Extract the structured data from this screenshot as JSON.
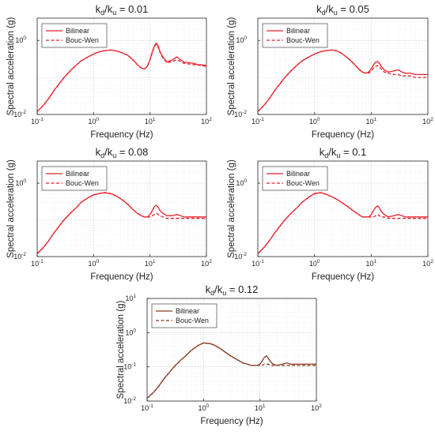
{
  "chart_data": [
    {
      "type": "line",
      "title_main": "k",
      "title_sub1": "d",
      "title_mid": "/k",
      "title_sub2": "u",
      "title_tail": " = 0.01",
      "xlabel": "Frequency (Hz)",
      "ylabel": "Spectral acceleration (g)",
      "x_scale": "log",
      "y_scale": "log",
      "xlim": [
        0.1,
        100
      ],
      "ylim": [
        0.01,
        4
      ],
      "grid": true,
      "legend_position": "top-left",
      "x_ticks": [
        "10",
        "10",
        "10",
        "10"
      ],
      "x_tick_exps": [
        "-1",
        "0",
        "1",
        "2"
      ],
      "y_ticks": [
        "10",
        "10"
      ],
      "y_tick_exps": [
        "-2",
        "0"
      ],
      "series": [
        {
          "name": "Bilinear",
          "color": "#e8202a",
          "style": "solid",
          "x": [
            0.1,
            0.13,
            0.16,
            0.2,
            0.25,
            0.3,
            0.4,
            0.5,
            0.6,
            0.8,
            1.0,
            1.3,
            1.6,
            2.0,
            2.5,
            3.0,
            4.0,
            5.0,
            6.0,
            7.0,
            8.0,
            9.0,
            10,
            11,
            12,
            13,
            14,
            15,
            17,
            20,
            25,
            30,
            35,
            40,
            50,
            60,
            70,
            80,
            100
          ],
          "y": [
            0.012,
            0.018,
            0.027,
            0.045,
            0.07,
            0.1,
            0.16,
            0.22,
            0.28,
            0.36,
            0.43,
            0.5,
            0.53,
            0.55,
            0.52,
            0.48,
            0.4,
            0.3,
            0.22,
            0.18,
            0.17,
            0.2,
            0.3,
            0.5,
            0.72,
            0.85,
            0.7,
            0.5,
            0.35,
            0.26,
            0.3,
            0.36,
            0.3,
            0.26,
            0.25,
            0.24,
            0.22,
            0.22,
            0.21
          ]
        },
        {
          "name": "Bouc-Wen",
          "color": "#e8202a",
          "style": "dashed",
          "x": [
            0.1,
            0.13,
            0.16,
            0.2,
            0.25,
            0.3,
            0.4,
            0.5,
            0.6,
            0.8,
            1.0,
            1.3,
            1.6,
            2.0,
            2.5,
            3.0,
            4.0,
            5.0,
            6.0,
            7.0,
            8.0,
            9.0,
            10,
            11,
            12,
            13,
            14,
            15,
            17,
            20,
            25,
            30,
            35,
            40,
            50,
            60,
            70,
            80,
            100
          ],
          "y": [
            0.012,
            0.018,
            0.027,
            0.045,
            0.07,
            0.1,
            0.16,
            0.22,
            0.28,
            0.36,
            0.43,
            0.5,
            0.53,
            0.55,
            0.52,
            0.48,
            0.4,
            0.3,
            0.22,
            0.18,
            0.17,
            0.2,
            0.3,
            0.48,
            0.68,
            0.8,
            0.65,
            0.48,
            0.33,
            0.25,
            0.27,
            0.3,
            0.27,
            0.24,
            0.23,
            0.22,
            0.22,
            0.21,
            0.2
          ]
        }
      ]
    },
    {
      "type": "line",
      "title_main": "k",
      "title_sub1": "d",
      "title_mid": "/k",
      "title_sub2": "u",
      "title_tail": " = 0.05",
      "xlabel": "Frequency (Hz)",
      "ylabel": "Spectral acceleration (g)",
      "x_scale": "log",
      "y_scale": "log",
      "xlim": [
        0.1,
        100
      ],
      "ylim": [
        0.01,
        4
      ],
      "grid": true,
      "legend_position": "top-left",
      "x_ticks": [
        "10",
        "10",
        "10",
        "10"
      ],
      "x_tick_exps": [
        "-1",
        "0",
        "1",
        "2"
      ],
      "y_ticks": [
        "10",
        "10"
      ],
      "y_tick_exps": [
        "-2",
        "0"
      ],
      "series": [
        {
          "name": "Bilinear",
          "color": "#e8202a",
          "style": "solid",
          "x": [
            0.1,
            0.13,
            0.16,
            0.2,
            0.25,
            0.3,
            0.4,
            0.5,
            0.6,
            0.8,
            1.0,
            1.3,
            1.6,
            2.0,
            2.5,
            3.0,
            4.0,
            5.0,
            6.0,
            7.0,
            8.0,
            9.0,
            10,
            11,
            12,
            13,
            14,
            15,
            17,
            20,
            25,
            30,
            35,
            40,
            50,
            60,
            70,
            80,
            100
          ],
          "y": [
            0.012,
            0.018,
            0.027,
            0.045,
            0.07,
            0.1,
            0.16,
            0.22,
            0.28,
            0.36,
            0.43,
            0.5,
            0.53,
            0.55,
            0.52,
            0.45,
            0.32,
            0.23,
            0.17,
            0.14,
            0.13,
            0.14,
            0.17,
            0.22,
            0.26,
            0.27,
            0.24,
            0.2,
            0.16,
            0.14,
            0.15,
            0.16,
            0.14,
            0.13,
            0.13,
            0.12,
            0.12,
            0.12,
            0.12
          ]
        },
        {
          "name": "Bouc-Wen",
          "color": "#e8202a",
          "style": "dashed",
          "x": [
            0.1,
            0.13,
            0.16,
            0.2,
            0.25,
            0.3,
            0.4,
            0.5,
            0.6,
            0.8,
            1.0,
            1.3,
            1.6,
            2.0,
            2.5,
            3.0,
            4.0,
            5.0,
            6.0,
            7.0,
            8.0,
            9.0,
            10,
            11,
            12,
            13,
            14,
            15,
            17,
            20,
            25,
            30,
            35,
            40,
            50,
            60,
            70,
            80,
            100
          ],
          "y": [
            0.012,
            0.018,
            0.027,
            0.045,
            0.07,
            0.1,
            0.16,
            0.22,
            0.28,
            0.36,
            0.43,
            0.5,
            0.53,
            0.55,
            0.52,
            0.45,
            0.32,
            0.23,
            0.17,
            0.14,
            0.13,
            0.13,
            0.15,
            0.18,
            0.2,
            0.21,
            0.19,
            0.17,
            0.14,
            0.13,
            0.12,
            0.12,
            0.11,
            0.11,
            0.11,
            0.1,
            0.1,
            0.1,
            0.1
          ]
        }
      ]
    },
    {
      "type": "line",
      "title_main": "k",
      "title_sub1": "d",
      "title_mid": "/k",
      "title_sub2": "u",
      "title_tail": " = 0.08",
      "xlabel": "Frequency (Hz)",
      "ylabel": "Spectral acceleration (g)",
      "x_scale": "log",
      "y_scale": "log",
      "xlim": [
        0.1,
        100
      ],
      "ylim": [
        0.01,
        4
      ],
      "grid": true,
      "legend_position": "top-left",
      "x_ticks": [
        "10",
        "10",
        "10",
        "10"
      ],
      "x_tick_exps": [
        "-1",
        "0",
        "1",
        "2"
      ],
      "y_ticks": [
        "10",
        "10"
      ],
      "y_tick_exps": [
        "-2",
        "0"
      ],
      "series": [
        {
          "name": "Bilinear",
          "color": "#e8202a",
          "style": "solid",
          "x": [
            0.1,
            0.13,
            0.16,
            0.2,
            0.25,
            0.3,
            0.4,
            0.5,
            0.6,
            0.8,
            1.0,
            1.3,
            1.6,
            2.0,
            2.5,
            3.0,
            4.0,
            5.0,
            6.0,
            7.0,
            8.0,
            9.0,
            10,
            11,
            12,
            13,
            14,
            15,
            17,
            20,
            25,
            30,
            35,
            40,
            50,
            60,
            70,
            80,
            100
          ],
          "y": [
            0.012,
            0.018,
            0.027,
            0.045,
            0.07,
            0.1,
            0.16,
            0.22,
            0.3,
            0.4,
            0.48,
            0.53,
            0.55,
            0.52,
            0.45,
            0.38,
            0.27,
            0.19,
            0.15,
            0.13,
            0.12,
            0.12,
            0.14,
            0.18,
            0.23,
            0.25,
            0.22,
            0.18,
            0.15,
            0.13,
            0.13,
            0.14,
            0.13,
            0.12,
            0.12,
            0.12,
            0.12,
            0.12,
            0.12
          ]
        },
        {
          "name": "Bouc-Wen",
          "color": "#e8202a",
          "style": "dashed",
          "x": [
            0.1,
            0.13,
            0.16,
            0.2,
            0.25,
            0.3,
            0.4,
            0.5,
            0.6,
            0.8,
            1.0,
            1.3,
            1.6,
            2.0,
            2.5,
            3.0,
            4.0,
            5.0,
            6.0,
            7.0,
            8.0,
            9.0,
            10,
            11,
            12,
            13,
            14,
            15,
            17,
            20,
            25,
            30,
            35,
            40,
            50,
            60,
            70,
            80,
            100
          ],
          "y": [
            0.012,
            0.018,
            0.027,
            0.045,
            0.07,
            0.1,
            0.16,
            0.22,
            0.3,
            0.4,
            0.48,
            0.53,
            0.55,
            0.52,
            0.45,
            0.38,
            0.27,
            0.19,
            0.15,
            0.13,
            0.12,
            0.12,
            0.12,
            0.13,
            0.14,
            0.15,
            0.14,
            0.13,
            0.12,
            0.11,
            0.11,
            0.11,
            0.11,
            0.11,
            0.11,
            0.11,
            0.11,
            0.11,
            0.11
          ]
        }
      ]
    },
    {
      "type": "line",
      "title_main": "k",
      "title_sub1": "d",
      "title_mid": "/k",
      "title_sub2": "u",
      "title_tail": " = 0.1",
      "xlabel": "Frequency (Hz)",
      "ylabel": "Spectral acceleration (g)",
      "x_scale": "log",
      "y_scale": "log",
      "xlim": [
        0.1,
        100
      ],
      "ylim": [
        0.01,
        4
      ],
      "grid": true,
      "legend_position": "top-left",
      "x_ticks": [
        "10",
        "10",
        "10",
        "10"
      ],
      "x_tick_exps": [
        "-1",
        "0",
        "1",
        "2"
      ],
      "y_ticks": [
        "10",
        "10"
      ],
      "y_tick_exps": [
        "-2",
        "0"
      ],
      "series": [
        {
          "name": "Bilinear",
          "color": "#e8202a",
          "style": "solid",
          "x": [
            0.1,
            0.13,
            0.16,
            0.2,
            0.25,
            0.3,
            0.4,
            0.5,
            0.6,
            0.8,
            1.0,
            1.3,
            1.6,
            2.0,
            2.5,
            3.0,
            4.0,
            5.0,
            6.0,
            7.0,
            8.0,
            9.0,
            10,
            11,
            12,
            13,
            14,
            15,
            17,
            20,
            25,
            30,
            35,
            40,
            50,
            60,
            70,
            80,
            100
          ],
          "y": [
            0.012,
            0.018,
            0.027,
            0.045,
            0.07,
            0.1,
            0.16,
            0.22,
            0.3,
            0.42,
            0.52,
            0.55,
            0.5,
            0.43,
            0.36,
            0.3,
            0.22,
            0.17,
            0.14,
            0.12,
            0.12,
            0.12,
            0.14,
            0.18,
            0.22,
            0.24,
            0.21,
            0.17,
            0.14,
            0.12,
            0.13,
            0.14,
            0.13,
            0.12,
            0.12,
            0.12,
            0.12,
            0.12,
            0.12
          ]
        },
        {
          "name": "Bouc-Wen",
          "color": "#e8202a",
          "style": "dashed",
          "x": [
            0.1,
            0.13,
            0.16,
            0.2,
            0.25,
            0.3,
            0.4,
            0.5,
            0.6,
            0.8,
            1.0,
            1.3,
            1.6,
            2.0,
            2.5,
            3.0,
            4.0,
            5.0,
            6.0,
            7.0,
            8.0,
            9.0,
            10,
            11,
            12,
            13,
            14,
            15,
            17,
            20,
            25,
            30,
            35,
            40,
            50,
            60,
            70,
            80,
            100
          ],
          "y": [
            0.012,
            0.018,
            0.027,
            0.045,
            0.07,
            0.1,
            0.16,
            0.22,
            0.3,
            0.42,
            0.52,
            0.55,
            0.5,
            0.43,
            0.36,
            0.3,
            0.22,
            0.17,
            0.14,
            0.12,
            0.12,
            0.12,
            0.12,
            0.12,
            0.13,
            0.14,
            0.13,
            0.12,
            0.12,
            0.11,
            0.11,
            0.11,
            0.11,
            0.11,
            0.11,
            0.11,
            0.11,
            0.11,
            0.11
          ]
        }
      ]
    },
    {
      "type": "line",
      "title_main": "k",
      "title_sub1": "d",
      "title_mid": "/k",
      "title_sub2": "u",
      "title_tail": " = 0.12",
      "xlabel": "Frequency (Hz)",
      "ylabel": "Spectral acceleration (g)",
      "x_scale": "log",
      "y_scale": "log",
      "xlim": [
        0.1,
        100
      ],
      "ylim": [
        0.01,
        10
      ],
      "grid": true,
      "legend_position": "top-left",
      "x_ticks": [
        "10",
        "10",
        "10",
        "10"
      ],
      "x_tick_exps": [
        "-1",
        "0",
        "1",
        "2"
      ],
      "y_ticks": [
        "10",
        "10",
        "10",
        "10"
      ],
      "y_tick_exps": [
        "-2",
        "-1",
        "0",
        "1"
      ],
      "series": [
        {
          "name": "Bilinear",
          "color": "#8b3a1e",
          "style": "solid",
          "x": [
            0.1,
            0.13,
            0.16,
            0.2,
            0.25,
            0.3,
            0.4,
            0.5,
            0.6,
            0.8,
            1.0,
            1.3,
            1.6,
            2.0,
            2.5,
            3.0,
            4.0,
            5.0,
            6.0,
            7.0,
            8.0,
            9.0,
            10,
            11,
            12,
            13,
            14,
            15,
            17,
            20,
            25,
            30,
            35,
            40,
            50,
            60,
            70,
            80,
            100
          ],
          "y": [
            0.012,
            0.018,
            0.027,
            0.045,
            0.07,
            0.1,
            0.16,
            0.22,
            0.3,
            0.42,
            0.5,
            0.48,
            0.42,
            0.34,
            0.26,
            0.21,
            0.16,
            0.13,
            0.12,
            0.11,
            0.11,
            0.11,
            0.12,
            0.15,
            0.19,
            0.21,
            0.18,
            0.15,
            0.12,
            0.11,
            0.12,
            0.13,
            0.12,
            0.12,
            0.12,
            0.12,
            0.12,
            0.12,
            0.12
          ]
        },
        {
          "name": "Bouc-Wen",
          "color": "#8b3a1e",
          "style": "dashed",
          "x": [
            0.1,
            0.13,
            0.16,
            0.2,
            0.25,
            0.3,
            0.4,
            0.5,
            0.6,
            0.8,
            1.0,
            1.3,
            1.6,
            2.0,
            2.5,
            3.0,
            4.0,
            5.0,
            6.0,
            7.0,
            8.0,
            9.0,
            10,
            11,
            12,
            13,
            14,
            15,
            17,
            20,
            25,
            30,
            35,
            40,
            50,
            60,
            70,
            80,
            100
          ],
          "y": [
            0.012,
            0.018,
            0.027,
            0.045,
            0.07,
            0.1,
            0.16,
            0.22,
            0.3,
            0.42,
            0.5,
            0.48,
            0.42,
            0.34,
            0.26,
            0.21,
            0.16,
            0.13,
            0.12,
            0.11,
            0.11,
            0.11,
            0.11,
            0.11,
            0.12,
            0.12,
            0.12,
            0.11,
            0.11,
            0.11,
            0.11,
            0.11,
            0.11,
            0.11,
            0.11,
            0.11,
            0.11,
            0.11,
            0.11
          ]
        }
      ]
    }
  ]
}
